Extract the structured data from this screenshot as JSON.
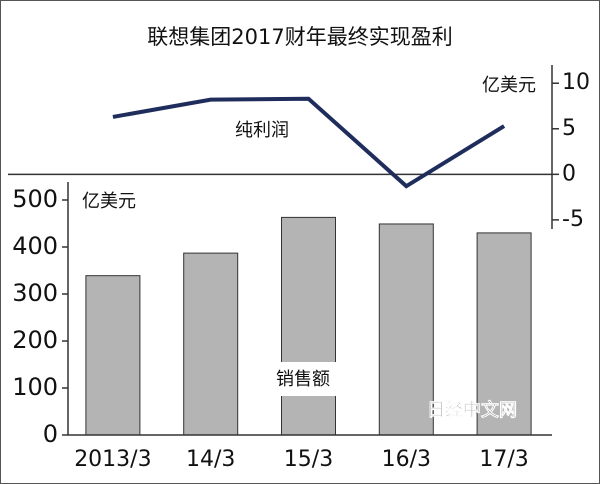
{
  "watermark": "日经中文网",
  "chart_data": [
    {
      "type": "line",
      "title": "联想集团2017财年最终实现盈利",
      "y2label": "亿美元",
      "categories": [
        "2013/3",
        "14/3",
        "15/3",
        "16/3",
        "17/3"
      ],
      "series": [
        {
          "name": "纯利润",
          "color": "#1f2d5c",
          "axis": "y2",
          "values": [
            6.3,
            8.2,
            8.3,
            -1.3,
            5.3
          ]
        }
      ],
      "y2lim": [
        -6,
        12
      ],
      "y2ticks": [
        10,
        5,
        0,
        -5
      ]
    },
    {
      "type": "bar",
      "ylabel": "亿美元",
      "categories": [
        "2013/3",
        "14/3",
        "15/3",
        "16/3",
        "17/3"
      ],
      "series": [
        {
          "name": "销售额",
          "color": "#b4b4b4",
          "values": [
            339,
            387,
            463,
            449,
            430
          ]
        }
      ],
      "ylim": [
        0,
        500
      ],
      "yticks": [
        0,
        100,
        200,
        300,
        400,
        500
      ]
    }
  ]
}
